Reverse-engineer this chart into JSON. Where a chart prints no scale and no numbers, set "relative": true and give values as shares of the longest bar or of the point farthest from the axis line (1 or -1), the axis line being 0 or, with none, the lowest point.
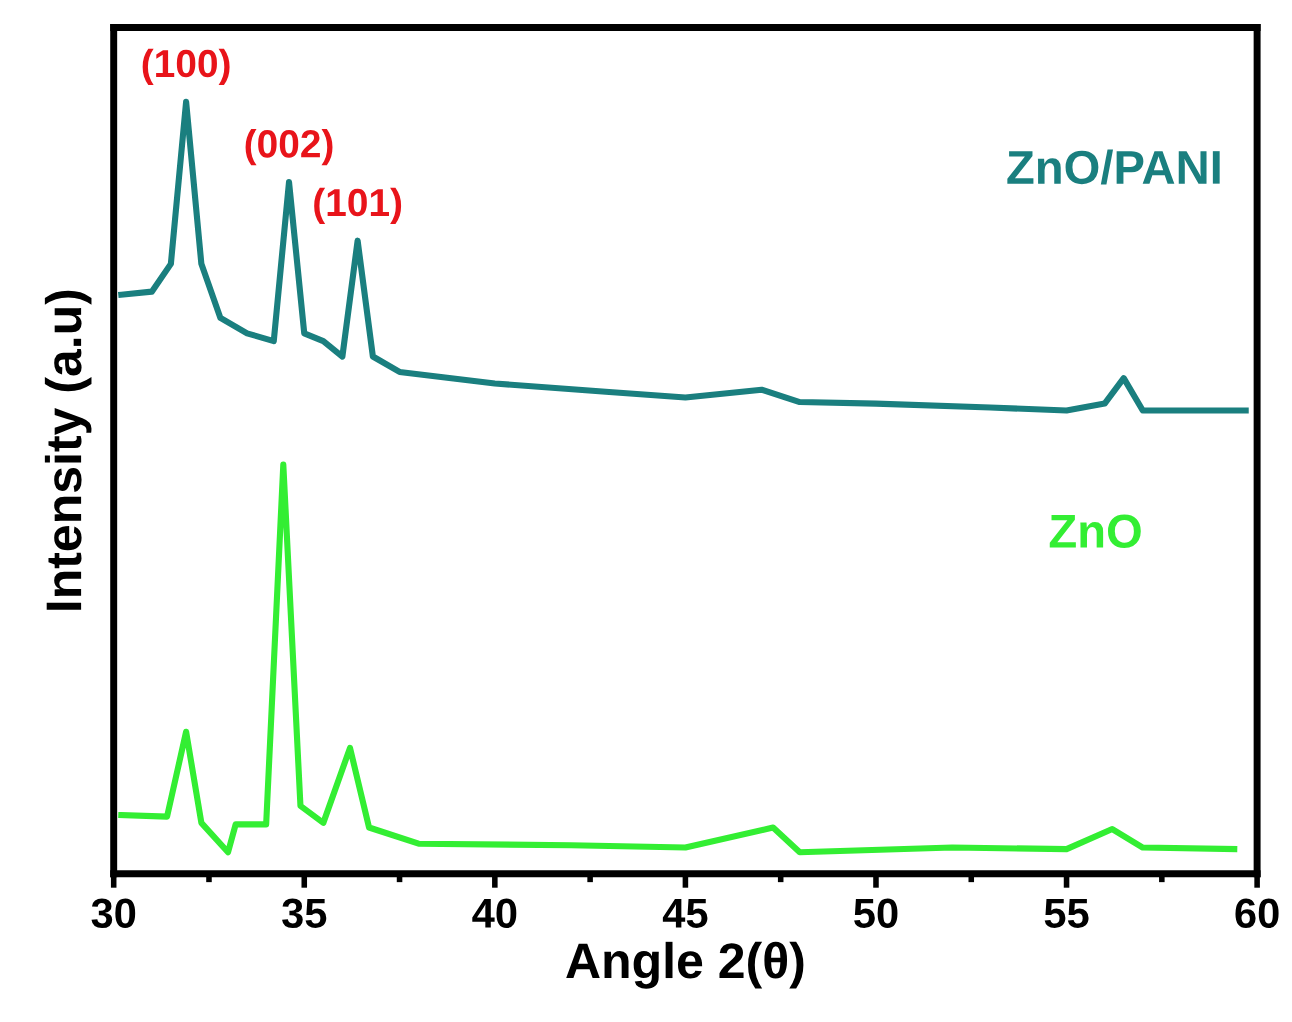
{
  "chart_data": {
    "type": "line",
    "relative": true,
    "xlabel": "Angle 2(θ)",
    "ylabel": "Intensity (a.u)",
    "xlim": [
      30,
      60
    ],
    "xticks": [
      30,
      35,
      40,
      45,
      50,
      55,
      60
    ],
    "tick_labels": "x",
    "grid": false,
    "marker": "none",
    "line_style": "solid",
    "series": [
      {
        "name": "ZnO/PANI",
        "color": "#1a7f7f",
        "x": [
          30.2,
          31.0,
          31.5,
          31.9,
          32.3,
          32.8,
          33.5,
          34.2,
          34.6,
          35.0,
          35.5,
          36.0,
          36.4,
          36.8,
          37.5,
          40,
          43,
          45,
          47,
          48,
          50,
          53,
          55,
          56.0,
          56.5,
          57.0,
          59.7
        ],
        "values": [
          0.75,
          0.754,
          0.79,
          1.0,
          0.79,
          0.72,
          0.7,
          0.69,
          0.896,
          0.7,
          0.69,
          0.67,
          0.82,
          0.67,
          0.65,
          0.635,
          0.624,
          0.617,
          0.627,
          0.611,
          0.609,
          0.604,
          0.6,
          0.609,
          0.642,
          0.6,
          0.6
        ]
      },
      {
        "name": "ZnO",
        "color": "#33ee33",
        "x": [
          30.2,
          31.4,
          31.9,
          32.3,
          33.0,
          33.2,
          34.0,
          34.45,
          34.9,
          35.5,
          36.2,
          36.7,
          38,
          42,
          45,
          47.3,
          48,
          52,
          55,
          56.2,
          57,
          59.4
        ],
        "values": [
          0.076,
          0.074,
          0.184,
          0.066,
          0.028,
          0.064,
          0.064,
          0.53,
          0.088,
          0.066,
          0.163,
          0.06,
          0.039,
          0.037,
          0.034,
          0.06,
          0.028,
          0.034,
          0.032,
          0.058,
          0.034,
          0.032
        ]
      }
    ],
    "annotations": [
      {
        "text": "(100)",
        "x": 31.9,
        "y": 1.0
      },
      {
        "text": "(002)",
        "x": 34.6,
        "y": 0.896
      },
      {
        "text": "(101)",
        "x": 36.4,
        "y": 0.82
      }
    ]
  }
}
